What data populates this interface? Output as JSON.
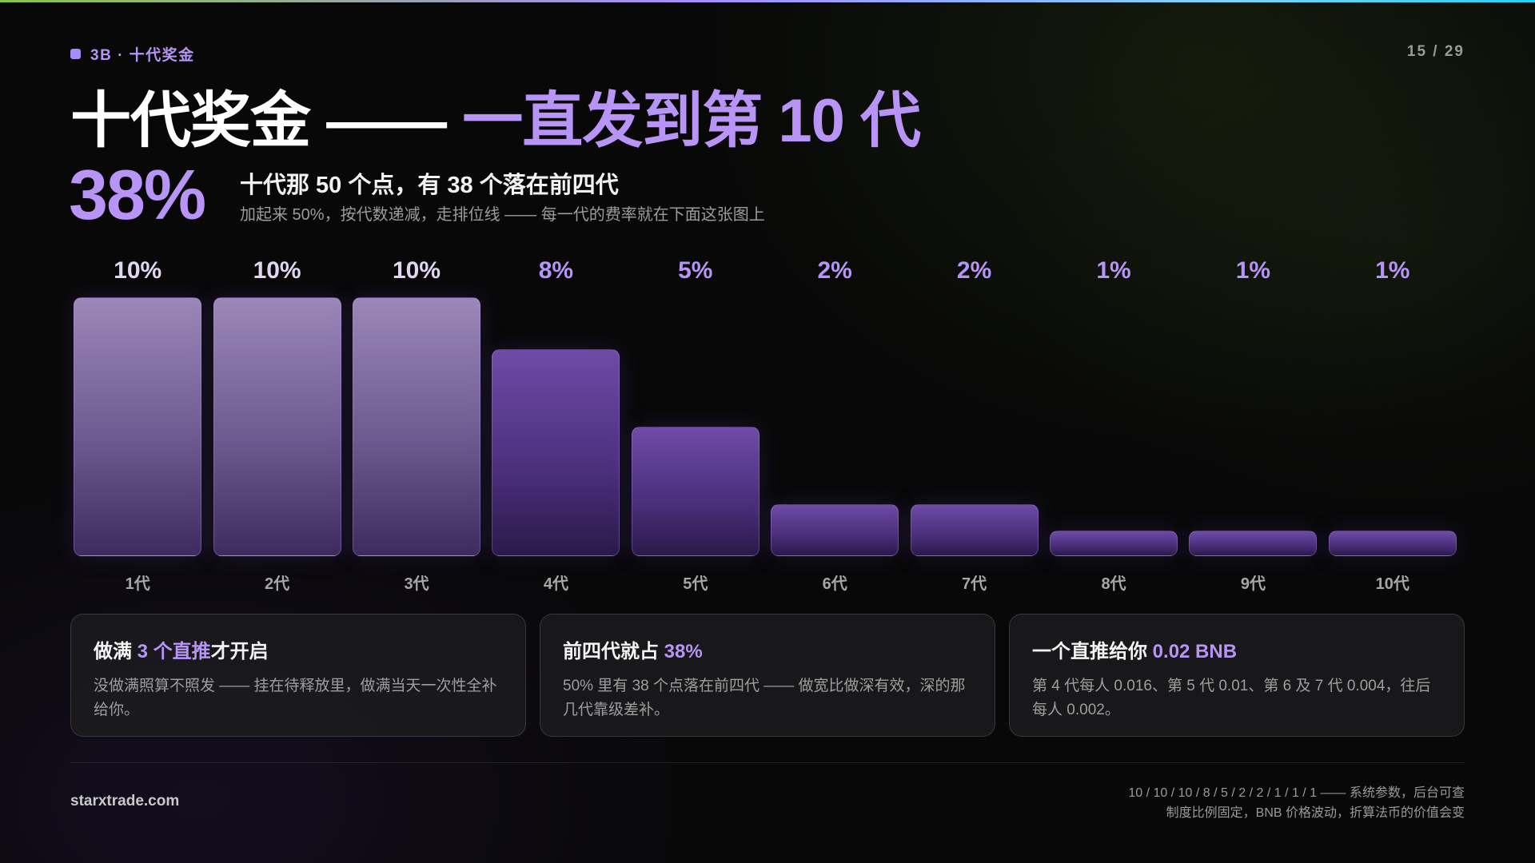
{
  "header": {
    "kicker": "3B · 十代奖金",
    "page": "15 / 29"
  },
  "title": {
    "main": "十代奖金 —— ",
    "highlight": "一直发到第 10 代"
  },
  "summary": {
    "big_number": "38%",
    "line1": "十代那 50 个点，有 38 个落在前四代",
    "line2": "加起来 50%，按代数递减，走排位线 —— 每一代的费率就在下面这张图上"
  },
  "chart_data": {
    "type": "bar",
    "categories": [
      "1代",
      "2代",
      "3代",
      "4代",
      "5代",
      "6代",
      "7代",
      "8代",
      "9代",
      "10代"
    ],
    "values": [
      10,
      10,
      10,
      8,
      5,
      2,
      2,
      1,
      1,
      1
    ],
    "value_labels": [
      "10%",
      "10%",
      "10%",
      "8%",
      "5%",
      "2%",
      "2%",
      "1%",
      "1%",
      "1%"
    ],
    "ylim": [
      0,
      10
    ],
    "grid": false,
    "colors": {
      "first_three": "#9b87b8",
      "rest": "#6e4ba8",
      "label_accent": "#b794f6"
    }
  },
  "cards": [
    {
      "title_pre": "做满 ",
      "title_hl": "3 个直推",
      "title_post": "才开启",
      "body": "没做满照算不照发 —— 挂在待释放里，做满当天一次性全补给你。"
    },
    {
      "title_pre": "前四代就占 ",
      "title_hl": "38%",
      "title_post": "",
      "body": "50% 里有 38 个点落在前四代 —— 做宽比做深有效，深的那几代靠级差补。"
    },
    {
      "title_pre": "一个直推给你 ",
      "title_hl": "0.02 BNB",
      "title_post": "",
      "body": "第 4 代每人 0.016、第 5 代 0.01、第 6 及 7 代 0.004，往后每人 0.002。"
    }
  ],
  "footer": {
    "site": "starxtrade.com",
    "note_line1": "10 / 10 / 10 / 8 / 5 / 2 / 2 / 1 / 1 / 1 —— 系统参数，后台可查",
    "note_line2": "制度比例固定，BNB 价格波动，折算法币的价值会变"
  },
  "colors": {
    "accent": "#b794f6",
    "background": "#080808"
  }
}
